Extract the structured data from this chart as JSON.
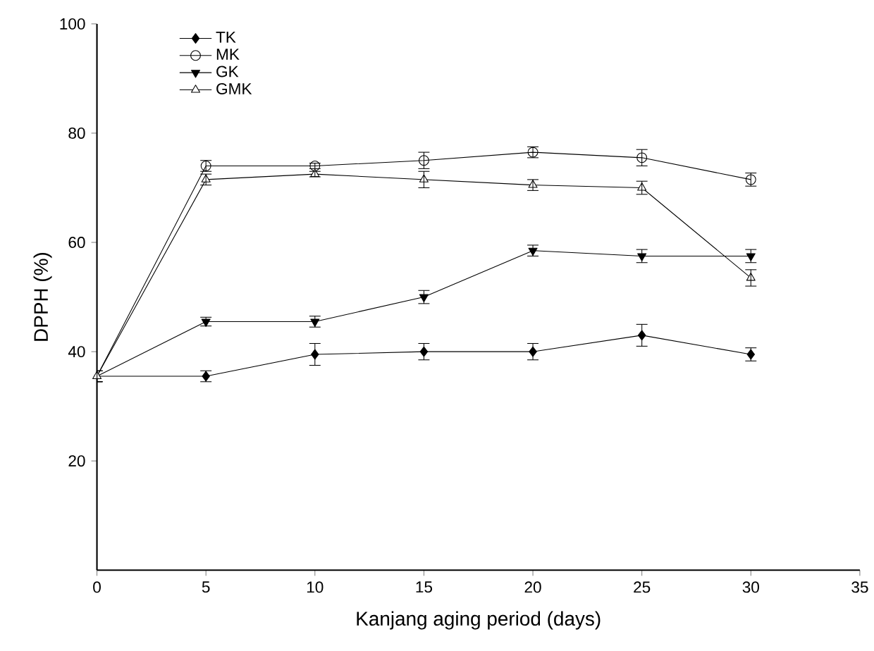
{
  "chart_data": {
    "type": "line",
    "xlabel": "Kanjang aging period (days)",
    "ylabel": "DPPH (%)",
    "x": [
      0,
      5,
      10,
      15,
      20,
      25,
      30
    ],
    "series": [
      {
        "name": "TK",
        "color": "#000000",
        "marker": "diamond",
        "values": [
          35.5,
          35.5,
          39.5,
          40,
          40,
          43,
          39.5
        ],
        "errors": [
          1,
          1,
          2,
          1.5,
          1.5,
          2,
          1.2
        ]
      },
      {
        "name": "MK",
        "color": "#000000",
        "marker": "circle",
        "values": [
          35.5,
          74,
          74,
          75,
          76.5,
          75.5,
          71.5
        ],
        "errors": [
          1,
          1,
          0.5,
          1.5,
          1,
          1.5,
          1.2
        ]
      },
      {
        "name": "GK",
        "color": "#000000",
        "marker": "triangle_down",
        "values": [
          35.5,
          45.5,
          45.5,
          50,
          58.5,
          57.5,
          57.5
        ],
        "errors": [
          1,
          0.8,
          1,
          1.2,
          1,
          1.2,
          1.2
        ]
      },
      {
        "name": "GMK",
        "color": "#000000",
        "marker": "triangle",
        "values": [
          35.5,
          71.5,
          72.5,
          71.5,
          70.5,
          70,
          53.5
        ],
        "errors": [
          1,
          1,
          0.5,
          1.5,
          1,
          1.2,
          1.5
        ]
      }
    ],
    "xlim": [
      0,
      35
    ],
    "xticks": [
      0,
      5,
      10,
      15,
      20,
      25,
      30,
      35
    ],
    "ylim": [
      0,
      100
    ],
    "yticks": [
      20,
      40,
      60,
      80,
      100
    ],
    "legend": "top left",
    "grid": false,
    "line_style": "solid"
  }
}
